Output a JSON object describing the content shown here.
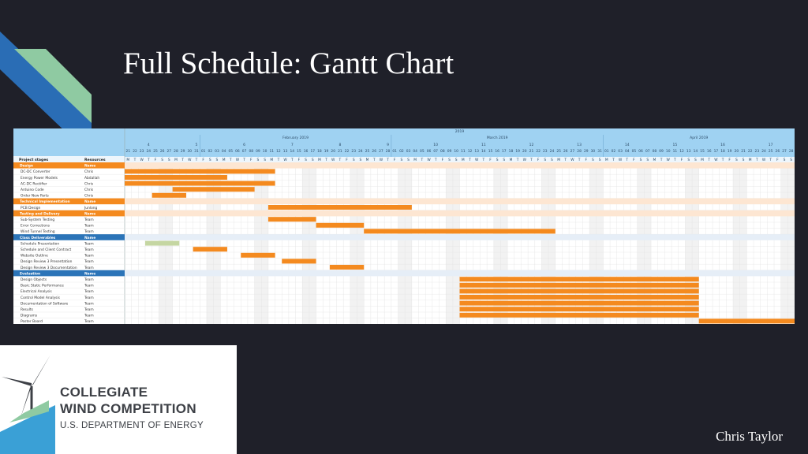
{
  "slide": {
    "title": "Full Schedule: Gantt Chart",
    "author": "Chris Taylor"
  },
  "logo": {
    "line1": "COLLEGIATE",
    "line2": "WIND COMPETITION",
    "line3": "U.S. DEPARTMENT OF ENERGY",
    "icon": "wind-turbine-icon"
  },
  "colors": {
    "background": "#1f2029",
    "bar": "#f48a1f",
    "bar_done": "#c5d6a2",
    "header_blue": "#9fd2f2",
    "group_orange": "#f48a1f",
    "group_blue": "#2b74b8"
  },
  "chart_data": {
    "type": "gantt",
    "year": "2019",
    "months": [
      {
        "name": "February 2019",
        "start": "2019-02-01"
      },
      {
        "name": "March 2019",
        "start": "2019-03-01"
      },
      {
        "name": "April 2019",
        "start": "2019-04-01"
      }
    ],
    "timeline_start": "2019-01-21",
    "timeline_end": "2019-04-28",
    "week_numbers": [
      "4",
      "5",
      "6",
      "7",
      "8",
      "9",
      "10",
      "11",
      "12",
      "13",
      "14",
      "15",
      "16",
      "17"
    ],
    "weekday_letters": [
      "M",
      "T",
      "W",
      "T",
      "F",
      "S",
      "S"
    ],
    "columns": [
      "Project stages",
      "Resources"
    ],
    "rows": [
      {
        "kind": "group",
        "name": "Design",
        "resource": "Name",
        "color": "orange"
      },
      {
        "kind": "task",
        "name": "DC-DC Converter",
        "resource": "Chris",
        "start": "2019-01-21",
        "end": "2019-02-11"
      },
      {
        "kind": "task",
        "name": "Energy Power Models",
        "resource": "Abdallah",
        "start": "2019-01-21",
        "end": "2019-02-04"
      },
      {
        "kind": "task",
        "name": "AC-DC Rectifier",
        "resource": "Chris",
        "start": "2019-01-21",
        "end": "2019-02-11"
      },
      {
        "kind": "task",
        "name": "Arduino Code",
        "resource": "Chris",
        "start": "2019-01-28",
        "end": "2019-02-08"
      },
      {
        "kind": "task",
        "name": "Order New Parts",
        "resource": "Chris",
        "start": "2019-01-25",
        "end": "2019-01-29"
      },
      {
        "kind": "group",
        "name": "Technical Implementation",
        "resource": "Name",
        "color": "orange"
      },
      {
        "kind": "task",
        "name": "PCB Design",
        "resource": "Junlong",
        "start": "2019-02-11",
        "end": "2019-03-03"
      },
      {
        "kind": "group",
        "name": "Testing and Delivery",
        "resource": "Name",
        "color": "orange"
      },
      {
        "kind": "task",
        "name": "Sub-System Testing",
        "resource": "Team",
        "start": "2019-02-11",
        "end": "2019-02-17"
      },
      {
        "kind": "task",
        "name": "Error Corrections",
        "resource": "Team",
        "start": "2019-02-18",
        "end": "2019-02-24"
      },
      {
        "kind": "task",
        "name": "Wind Tunnel Testing",
        "resource": "Team",
        "start": "2019-02-25",
        "end": "2019-03-24"
      },
      {
        "kind": "group",
        "name": "Class Deliverables",
        "resource": "Name",
        "color": "blue"
      },
      {
        "kind": "task",
        "name": "Schedule Presentation",
        "resource": "Team",
        "start": "2019-01-24",
        "end": "2019-01-28",
        "done": true
      },
      {
        "kind": "task",
        "name": "Schedule and Client Contract",
        "resource": "Team",
        "start": "2019-01-31",
        "end": "2019-02-04"
      },
      {
        "kind": "task",
        "name": "Website Outline",
        "resource": "Team",
        "start": "2019-02-07",
        "end": "2019-02-11"
      },
      {
        "kind": "task",
        "name": "Design Review 3 Presentation",
        "resource": "Team",
        "start": "2019-02-13",
        "end": "2019-02-17"
      },
      {
        "kind": "task",
        "name": "Design Review 3 Documentation",
        "resource": "Team",
        "start": "2019-02-20",
        "end": "2019-02-24"
      },
      {
        "kind": "group",
        "name": "Evaluation",
        "resource": "Name",
        "color": "blue"
      },
      {
        "kind": "task",
        "name": "Design Objects",
        "resource": "Team",
        "start": "2019-03-11",
        "end": "2019-04-14"
      },
      {
        "kind": "task",
        "name": "Basic Static Performance",
        "resource": "Team",
        "start": "2019-03-11",
        "end": "2019-04-14"
      },
      {
        "kind": "task",
        "name": "Electrical Analysis",
        "resource": "Team",
        "start": "2019-03-11",
        "end": "2019-04-14"
      },
      {
        "kind": "task",
        "name": "Control Model Analysis",
        "resource": "Team",
        "start": "2019-03-11",
        "end": "2019-04-14"
      },
      {
        "kind": "task",
        "name": "Documentation of Software",
        "resource": "Team",
        "start": "2019-03-11",
        "end": "2019-04-14"
      },
      {
        "kind": "task",
        "name": "Results",
        "resource": "Team",
        "start": "2019-03-11",
        "end": "2019-04-14"
      },
      {
        "kind": "task",
        "name": "Diagrams",
        "resource": "Team",
        "start": "2019-03-11",
        "end": "2019-04-14"
      },
      {
        "kind": "task",
        "name": "Poster Board",
        "resource": "Team",
        "start": "2019-04-15",
        "end": "2019-04-28"
      }
    ]
  }
}
